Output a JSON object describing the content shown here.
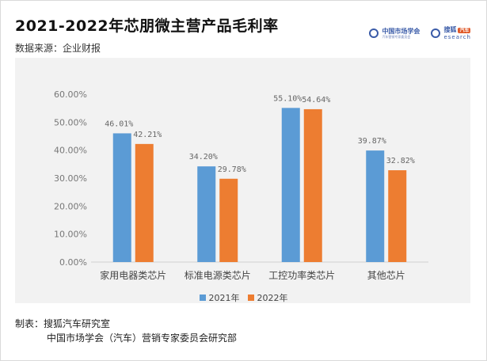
{
  "title": "2021-2022年芯朋微主营产品毛利率",
  "subtitle": "数据来源：企业财报",
  "logos": {
    "left_name": "中国市场学会",
    "left_sub": "汽车营销专家委员会",
    "right_name": "搜狐",
    "right_tag": "汽车",
    "right_en": "esearch"
  },
  "footer": {
    "maker": "制表：搜狐汽车研究室",
    "org": "中国市场学会（汽车）营销专家委员会研究部"
  },
  "colors": {
    "s2021": "#5b9bd5",
    "s2022": "#ed7d31",
    "plot_bg": "#f2f2f2"
  },
  "chart_data": {
    "type": "bar",
    "title": "2021-2022年芯朋微主营产品毛利率",
    "categories": [
      "家用电器类芯片",
      "标准电源类芯片",
      "工控功率类芯片",
      "其他芯片"
    ],
    "series": [
      {
        "name": "2021年",
        "values": [
          46.01,
          34.2,
          55.1,
          39.87
        ],
        "labels": [
          "46.01%",
          "34.20%",
          "55.10%",
          "39.87%"
        ]
      },
      {
        "name": "2022年",
        "values": [
          42.21,
          29.78,
          54.64,
          32.82
        ],
        "labels": [
          "42.21%",
          "29.78%",
          "54.64%",
          "32.82%"
        ]
      }
    ],
    "ylim": [
      0,
      60
    ],
    "yticks": [
      "0.00%",
      "10.00%",
      "20.00%",
      "30.00%",
      "40.00%",
      "50.00%",
      "60.00%"
    ],
    "grid": false,
    "legend_position": "bottom"
  }
}
